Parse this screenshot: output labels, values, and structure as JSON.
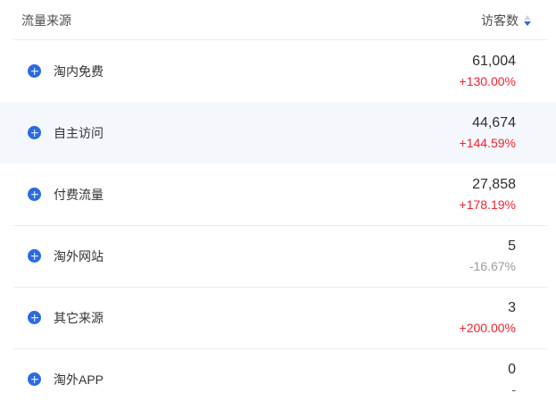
{
  "header": {
    "source_label": "流量来源",
    "visitors_label": "访客数"
  },
  "sort": {
    "column": "访客数",
    "direction": "desc"
  },
  "rows": [
    {
      "label": "淘内免费",
      "visitors": "61,004",
      "change": "+130.00%",
      "trend": "up",
      "highlighted": false
    },
    {
      "label": "自主访问",
      "visitors": "44,674",
      "change": "+144.59%",
      "trend": "up",
      "highlighted": true
    },
    {
      "label": "付费流量",
      "visitors": "27,858",
      "change": "+178.19%",
      "trend": "up",
      "highlighted": false
    },
    {
      "label": "淘外网站",
      "visitors": "5",
      "change": "-16.67%",
      "trend": "down",
      "highlighted": false
    },
    {
      "label": "其它来源",
      "visitors": "3",
      "change": "+200.00%",
      "trend": "up",
      "highlighted": false
    },
    {
      "label": "淘外APP",
      "visitors": "0",
      "change": "-",
      "trend": "neutral",
      "highlighted": false
    }
  ],
  "colors": {
    "accent_blue": "#2b6be2",
    "positive_red": "#f5222d",
    "negative_gray": "#9b9b9b",
    "neutral_dark": "#555555",
    "highlight_bg": "#f4f8fd"
  }
}
